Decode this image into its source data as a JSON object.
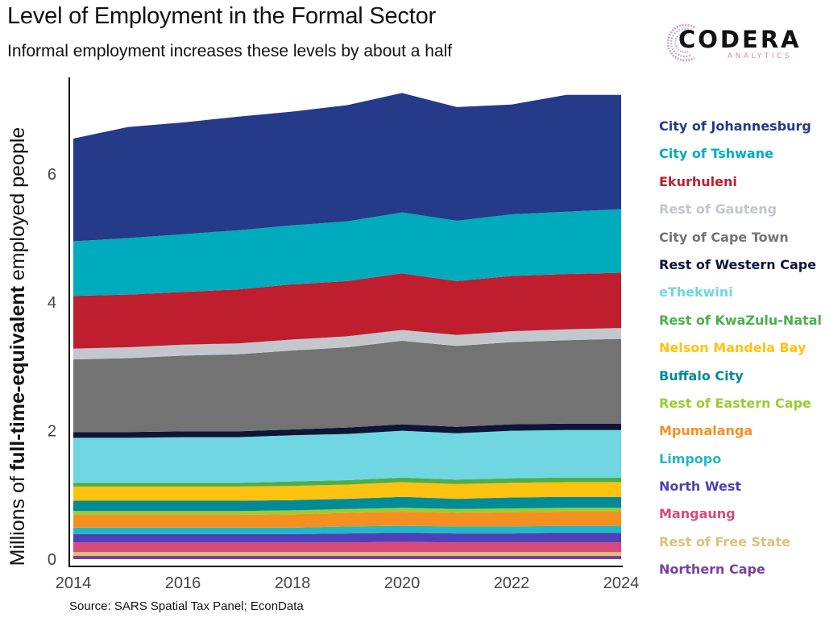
{
  "header": {
    "title": "Level of Employment in the Formal Sector",
    "subtitle": "Informal employment increases these levels by about a half"
  },
  "logo": {
    "name": "CODERA",
    "tagline": "ANALYTICS"
  },
  "footer": {
    "source": "Source: SARS Spatial Tax Panel; EconData"
  },
  "chart_data": {
    "type": "area",
    "stacked": true,
    "title": "Level of Employment in the Formal Sector",
    "subtitle": "Informal employment increases these levels by about a half",
    "xlabel": "",
    "ylabel": {
      "prefix": "Millions of ",
      "bold": "full-time-equivalent",
      "suffix": " employed people"
    },
    "x": [
      2014,
      2015,
      2016,
      2017,
      2018,
      2019,
      2020,
      2021,
      2022,
      2023,
      2024
    ],
    "xticks": [
      "2014",
      "2016",
      "2018",
      "2020",
      "2022",
      "2024"
    ],
    "xlim": [
      2014,
      2024
    ],
    "yticks": [
      "0",
      "2",
      "4",
      "6"
    ],
    "ylim": [
      0,
      7.4
    ],
    "grid": false,
    "legend_position": "right",
    "series": [
      {
        "name": "Northern Cape",
        "color": "#7b3fa0",
        "values": [
          0.05,
          0.05,
          0.05,
          0.05,
          0.05,
          0.05,
          0.05,
          0.05,
          0.05,
          0.05,
          0.05
        ]
      },
      {
        "name": "Rest of Free State",
        "color": "#d9c27a",
        "values": [
          0.06,
          0.06,
          0.06,
          0.06,
          0.06,
          0.06,
          0.06,
          0.06,
          0.06,
          0.06,
          0.06
        ]
      },
      {
        "name": "Mangaung",
        "color": "#d94a7a",
        "values": [
          0.15,
          0.15,
          0.15,
          0.15,
          0.15,
          0.15,
          0.16,
          0.15,
          0.15,
          0.15,
          0.15
        ]
      },
      {
        "name": "North West",
        "color": "#5040b8",
        "values": [
          0.13,
          0.13,
          0.13,
          0.13,
          0.13,
          0.14,
          0.14,
          0.14,
          0.14,
          0.15,
          0.15
        ]
      },
      {
        "name": "Limpopo",
        "color": "#20b8c8",
        "values": [
          0.1,
          0.1,
          0.1,
          0.1,
          0.1,
          0.11,
          0.11,
          0.11,
          0.11,
          0.11,
          0.11
        ]
      },
      {
        "name": "Mpumalanga",
        "color": "#f59020",
        "values": [
          0.2,
          0.2,
          0.2,
          0.2,
          0.21,
          0.21,
          0.22,
          0.21,
          0.22,
          0.22,
          0.22
        ]
      },
      {
        "name": "Rest of Eastern Cape",
        "color": "#9acd32",
        "values": [
          0.06,
          0.06,
          0.06,
          0.06,
          0.06,
          0.06,
          0.06,
          0.06,
          0.06,
          0.06,
          0.06
        ]
      },
      {
        "name": "Buffalo City",
        "color": "#008b99",
        "values": [
          0.16,
          0.16,
          0.16,
          0.16,
          0.16,
          0.16,
          0.17,
          0.16,
          0.17,
          0.17,
          0.17
        ]
      },
      {
        "name": "Nelson Mandela Bay",
        "color": "#ffc20e",
        "values": [
          0.22,
          0.22,
          0.22,
          0.22,
          0.22,
          0.22,
          0.23,
          0.23,
          0.23,
          0.23,
          0.23
        ]
      },
      {
        "name": "Rest of KwaZulu-Natal",
        "color": "#4cae4c",
        "values": [
          0.06,
          0.06,
          0.06,
          0.06,
          0.07,
          0.07,
          0.07,
          0.07,
          0.07,
          0.07,
          0.07
        ]
      },
      {
        "name": "eThekwini",
        "color": "#6fd6e2",
        "values": [
          0.7,
          0.7,
          0.71,
          0.71,
          0.72,
          0.72,
          0.73,
          0.72,
          0.74,
          0.74,
          0.74
        ]
      },
      {
        "name": "Rest of Western Cape",
        "color": "#0f1538",
        "values": [
          0.09,
          0.09,
          0.09,
          0.09,
          0.09,
          0.1,
          0.1,
          0.1,
          0.1,
          0.1,
          0.1
        ]
      },
      {
        "name": "City of Cape Town",
        "color": "#737373",
        "values": [
          1.13,
          1.15,
          1.18,
          1.2,
          1.23,
          1.25,
          1.3,
          1.26,
          1.28,
          1.3,
          1.32
        ]
      },
      {
        "name": "Rest of Gauteng",
        "color": "#c3c7cc",
        "values": [
          0.17,
          0.17,
          0.17,
          0.17,
          0.17,
          0.17,
          0.17,
          0.17,
          0.17,
          0.17,
          0.17
        ]
      },
      {
        "name": "Ekurhuleni",
        "color": "#be1e2d",
        "values": [
          0.82,
          0.82,
          0.82,
          0.84,
          0.86,
          0.86,
          0.88,
          0.84,
          0.86,
          0.86,
          0.86
        ]
      },
      {
        "name": "City of Tshwane",
        "color": "#00abbd",
        "values": [
          0.85,
          0.88,
          0.9,
          0.92,
          0.92,
          0.93,
          0.95,
          0.94,
          0.96,
          0.97,
          0.99
        ]
      },
      {
        "name": "City of Johannesburg",
        "color": "#263a8a",
        "values": [
          1.6,
          1.73,
          1.74,
          1.77,
          1.77,
          1.81,
          1.86,
          1.77,
          1.71,
          1.82,
          1.78
        ]
      }
    ],
    "legend_order": [
      "City of Johannesburg",
      "City of Tshwane",
      "Ekurhuleni",
      "Rest of Gauteng",
      "City of Cape Town",
      "Rest of Western Cape",
      "eThekwini",
      "Rest of KwaZulu-Natal",
      "Nelson Mandela Bay",
      "Buffalo City",
      "Rest of Eastern Cape",
      "Mpumalanga",
      "Limpopo",
      "North West",
      "Mangaung",
      "Rest of Free State",
      "Northern Cape"
    ]
  }
}
